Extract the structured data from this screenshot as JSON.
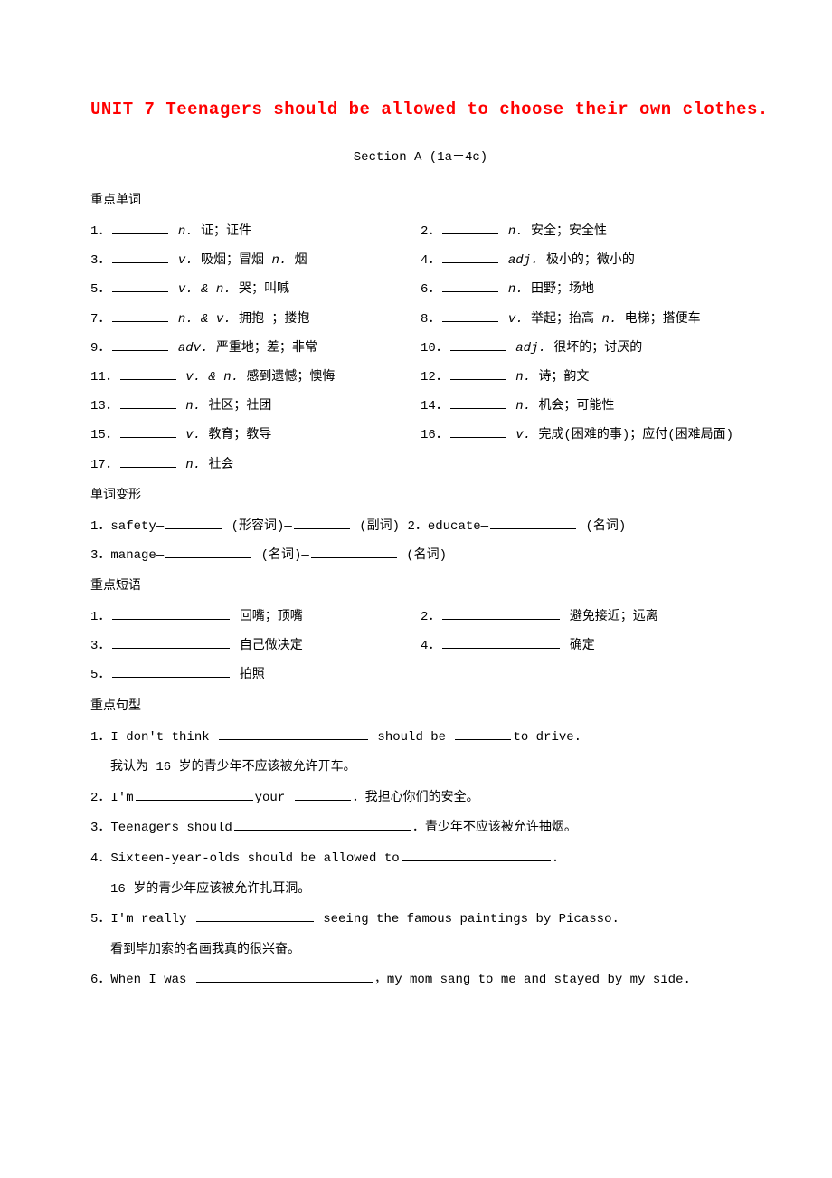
{
  "title": "UNIT 7  Teenagers should be allowed to choose their own clothes.",
  "subtitle": "Section A  (1a－4c)",
  "sections": {
    "vocab_label": "重点单词",
    "vocab": [
      {
        "n": "1．",
        "pos": "n.",
        "def": "证；证件"
      },
      {
        "n": "2．",
        "pos": "n.",
        "def": "安全；安全性"
      },
      {
        "n": "3．",
        "pos": "v.",
        "def": "吸烟；冒烟 ",
        "pos2": "n.",
        "def2": "烟"
      },
      {
        "n": "4．",
        "pos": "adj.",
        "def": "极小的；微小的"
      },
      {
        "n": "5．",
        "pos": "v. & n.",
        "def": "哭；叫喊"
      },
      {
        "n": "6．",
        "pos": "n.",
        "def": "田野；场地"
      },
      {
        "n": "7．",
        "pos": "n. & v.",
        "def": "拥抱 ；搂抱"
      },
      {
        "n": "8．",
        "pos": "v.",
        "def": "举起；抬高 ",
        "pos2": "n.",
        "def2": "电梯；搭便车"
      },
      {
        "n": "9．",
        "pos": "adv.",
        "def": "严重地；差；非常"
      },
      {
        "n": "10．",
        "pos": "adj.",
        "def": "很坏的；讨厌的"
      },
      {
        "n": "11．",
        "pos": "v. & n.",
        "def": "感到遗憾；懊悔"
      },
      {
        "n": "12．",
        "pos": "n.",
        "def": "诗；韵文"
      },
      {
        "n": "13．",
        "pos": "n.",
        "def": "社区；社团"
      },
      {
        "n": "14．",
        "pos": "n.",
        "def": "机会；可能性"
      },
      {
        "n": "15．",
        "pos": "v.",
        "def": "教育；教导"
      },
      {
        "n": "16．",
        "pos": "v.",
        "def": "完成(困难的事)；应付(困难局面)"
      },
      {
        "n": "17．",
        "pos": "n.",
        "def": "社会"
      }
    ],
    "forms_label": "单词变形",
    "forms": [
      {
        "line": "1．safety—",
        "a": "(形容词)—",
        "b": "(副词)  2．educate—",
        "c": "(名词)"
      },
      {
        "line": "3．manage—",
        "a": "(名词)—",
        "b": "(名词)"
      }
    ],
    "phrases_label": "重点短语",
    "phrases": [
      {
        "n": "1．",
        "def": "回嘴；顶嘴"
      },
      {
        "n": "2．",
        "def": "避免接近；远离"
      },
      {
        "n": "3．",
        "def": "自己做决定"
      },
      {
        "n": "4．",
        "def": "确定"
      },
      {
        "n": "5．",
        "def": "拍照"
      }
    ],
    "sentences_label": "重点句型",
    "sentences": {
      "s1a": "1．I don't think ",
      "s1b": " should be ",
      "s1c": "to drive.",
      "s1t": "我认为 16 岁的青少年不应该被允许开车。",
      "s2a": "2．I'm",
      "s2b": "your ",
      "s2c": "．我担心你们的安全。",
      "s3a": "3．Teenagers should",
      "s3b": "．青少年不应该被允许抽烟。",
      "s4a": "4．Sixteen­-year­-olds should be allowed to",
      "s4b": "．",
      "s4t": "16 岁的青少年应该被允许扎耳洞。",
      "s5a": "5．I'm really ",
      "s5b": " seeing the famous paintings by Picasso.",
      "s5t": "看到毕加索的名画我真的很兴奋。",
      "s6a": "6．When I was ",
      "s6b": "，my mom sang to me and stayed by my side."
    }
  }
}
